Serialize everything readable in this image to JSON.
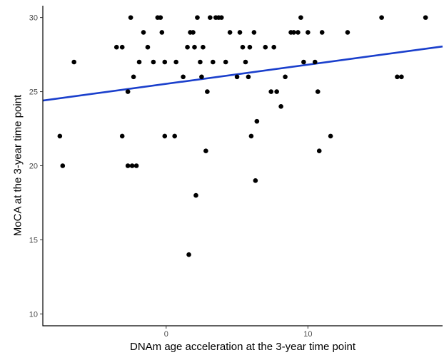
{
  "chart_data": {
    "type": "scatter",
    "title": "",
    "xlabel": "DNAm age acceleration at the 3-year time point",
    "ylabel": "MoCA at the 3-year time point",
    "xlim": [
      -8.7,
      19.5
    ],
    "ylim": [
      9.2,
      30.8
    ],
    "xticks": [
      0,
      10
    ],
    "yticks": [
      10,
      15,
      20,
      25,
      30
    ],
    "grid": false,
    "legend": "none",
    "point_color": "#000000",
    "trend_line": {
      "color": "#1a3fcc",
      "x": [
        -8.7,
        19.5
      ],
      "y": [
        24.4,
        28.05
      ]
    },
    "points": [
      {
        "x": -7.5,
        "y": 22
      },
      {
        "x": -7.3,
        "y": 20
      },
      {
        "x": -6.5,
        "y": 27
      },
      {
        "x": -3.5,
        "y": 28
      },
      {
        "x": -3.1,
        "y": 28
      },
      {
        "x": -3.1,
        "y": 22
      },
      {
        "x": -2.7,
        "y": 25
      },
      {
        "x": -2.7,
        "y": 20
      },
      {
        "x": -2.5,
        "y": 30
      },
      {
        "x": -2.4,
        "y": 20
      },
      {
        "x": -2.3,
        "y": 26
      },
      {
        "x": -2.1,
        "y": 20
      },
      {
        "x": -1.9,
        "y": 27
      },
      {
        "x": -1.6,
        "y": 29
      },
      {
        "x": -1.3,
        "y": 28
      },
      {
        "x": -0.9,
        "y": 27
      },
      {
        "x": -0.6,
        "y": 30
      },
      {
        "x": -0.4,
        "y": 30
      },
      {
        "x": -0.3,
        "y": 29
      },
      {
        "x": -0.1,
        "y": 27
      },
      {
        "x": -0.1,
        "y": 22
      },
      {
        "x": 0.7,
        "y": 27
      },
      {
        "x": 0.6,
        "y": 22
      },
      {
        "x": 1.2,
        "y": 26
      },
      {
        "x": 1.5,
        "y": 28
      },
      {
        "x": 1.6,
        "y": 14
      },
      {
        "x": 1.7,
        "y": 29
      },
      {
        "x": 1.9,
        "y": 29
      },
      {
        "x": 2.0,
        "y": 28
      },
      {
        "x": 2.1,
        "y": 18
      },
      {
        "x": 2.2,
        "y": 30
      },
      {
        "x": 2.4,
        "y": 27
      },
      {
        "x": 2.5,
        "y": 26
      },
      {
        "x": 2.6,
        "y": 28
      },
      {
        "x": 2.8,
        "y": 21
      },
      {
        "x": 2.9,
        "y": 25
      },
      {
        "x": 3.1,
        "y": 30
      },
      {
        "x": 3.3,
        "y": 27
      },
      {
        "x": 3.5,
        "y": 30
      },
      {
        "x": 3.7,
        "y": 30
      },
      {
        "x": 3.9,
        "y": 30
      },
      {
        "x": 4.2,
        "y": 27
      },
      {
        "x": 4.5,
        "y": 29
      },
      {
        "x": 5.0,
        "y": 26
      },
      {
        "x": 5.2,
        "y": 29
      },
      {
        "x": 5.4,
        "y": 28
      },
      {
        "x": 5.6,
        "y": 27
      },
      {
        "x": 5.8,
        "y": 26
      },
      {
        "x": 5.9,
        "y": 28
      },
      {
        "x": 6.0,
        "y": 22
      },
      {
        "x": 6.2,
        "y": 29
      },
      {
        "x": 6.3,
        "y": 19
      },
      {
        "x": 6.4,
        "y": 23
      },
      {
        "x": 7.0,
        "y": 28
      },
      {
        "x": 7.4,
        "y": 25
      },
      {
        "x": 7.6,
        "y": 28
      },
      {
        "x": 7.8,
        "y": 25
      },
      {
        "x": 8.1,
        "y": 24
      },
      {
        "x": 8.4,
        "y": 26
      },
      {
        "x": 8.8,
        "y": 29
      },
      {
        "x": 9.0,
        "y": 29
      },
      {
        "x": 9.3,
        "y": 29
      },
      {
        "x": 9.5,
        "y": 30
      },
      {
        "x": 9.7,
        "y": 27
      },
      {
        "x": 10.0,
        "y": 29
      },
      {
        "x": 10.5,
        "y": 27
      },
      {
        "x": 10.7,
        "y": 25
      },
      {
        "x": 10.8,
        "y": 21
      },
      {
        "x": 11.0,
        "y": 29
      },
      {
        "x": 11.6,
        "y": 22
      },
      {
        "x": 12.8,
        "y": 29
      },
      {
        "x": 15.2,
        "y": 30
      },
      {
        "x": 16.3,
        "y": 26
      },
      {
        "x": 16.6,
        "y": 26
      },
      {
        "x": 18.3,
        "y": 30
      }
    ]
  }
}
